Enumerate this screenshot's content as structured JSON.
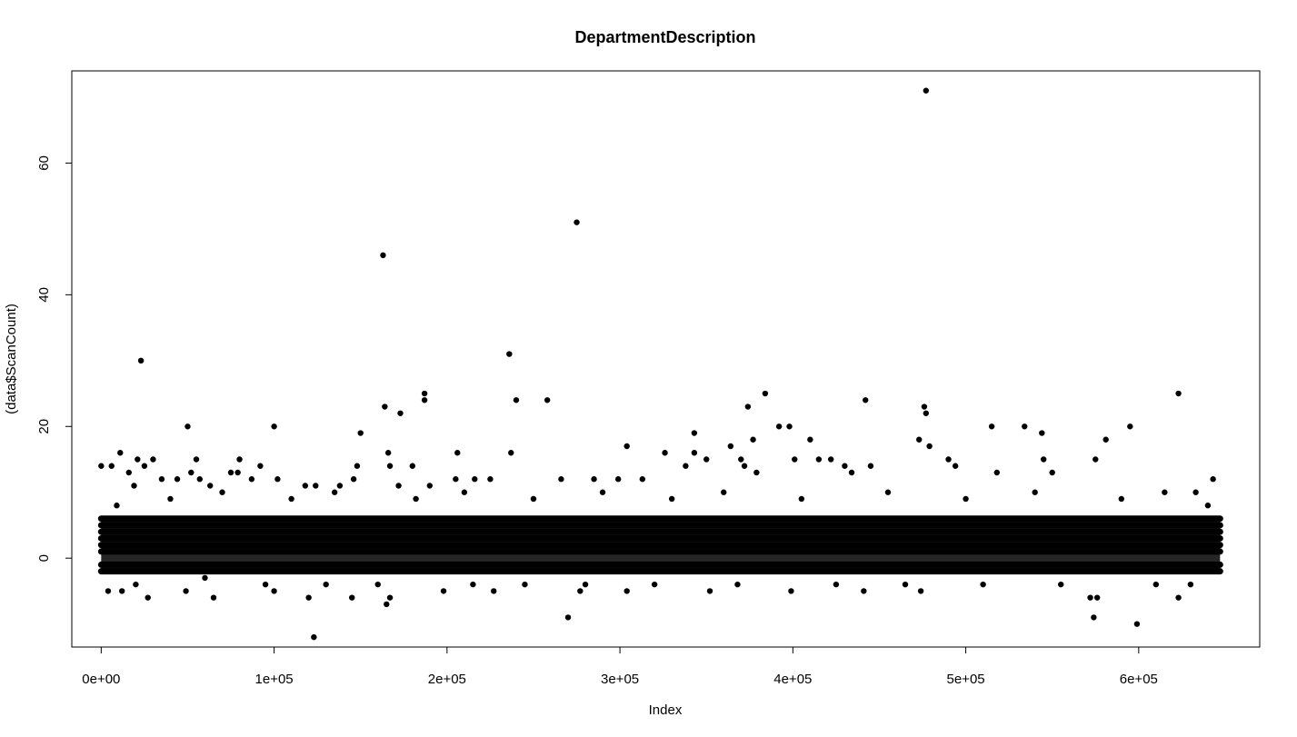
{
  "chart_data": {
    "type": "scatter",
    "title": "DepartmentDescription",
    "xlabel": "Index",
    "ylabel": "(data$ScanCount)",
    "xlim": [
      -17000,
      670000
    ],
    "ylim": [
      -13.5,
      74
    ],
    "x_ticks": [
      0,
      100000,
      200000,
      300000,
      400000,
      500000,
      600000
    ],
    "x_tick_labels": [
      "0e+00",
      "1e+05",
      "2e+05",
      "3e+05",
      "4e+05",
      "5e+05",
      "6e+05"
    ],
    "y_ticks": [
      0,
      20,
      40,
      60
    ],
    "y_tick_labels": [
      "0",
      "20",
      "40",
      "60"
    ],
    "grid": false,
    "legend": "none",
    "marker_color": "#000000",
    "dense_band": {
      "x_range": [
        0,
        647054
      ],
      "y_values": [
        -2,
        -1,
        1,
        2,
        3,
        4,
        5,
        6
      ]
    },
    "points": [
      {
        "x": 0,
        "y": 14
      },
      {
        "x": 6000,
        "y": 14
      },
      {
        "x": 11000,
        "y": 16
      },
      {
        "x": 16000,
        "y": 13
      },
      {
        "x": 23000,
        "y": 30
      },
      {
        "x": 21000,
        "y": 15
      },
      {
        "x": 25000,
        "y": 14
      },
      {
        "x": 30000,
        "y": 15
      },
      {
        "x": 19000,
        "y": 11
      },
      {
        "x": 35000,
        "y": 12
      },
      {
        "x": 44000,
        "y": 12
      },
      {
        "x": 50000,
        "y": 20
      },
      {
        "x": 52000,
        "y": 13
      },
      {
        "x": 55000,
        "y": 15
      },
      {
        "x": 57000,
        "y": 12
      },
      {
        "x": 63000,
        "y": 11
      },
      {
        "x": 75000,
        "y": 13
      },
      {
        "x": 79000,
        "y": 13
      },
      {
        "x": 80000,
        "y": 15
      },
      {
        "x": 87000,
        "y": 12
      },
      {
        "x": 92000,
        "y": 14
      },
      {
        "x": 100000,
        "y": 20
      },
      {
        "x": 102000,
        "y": 12
      },
      {
        "x": 118000,
        "y": 11
      },
      {
        "x": 124000,
        "y": 11
      },
      {
        "x": 138000,
        "y": 11
      },
      {
        "x": 146000,
        "y": 12
      },
      {
        "x": 150000,
        "y": 19
      },
      {
        "x": 148000,
        "y": 14
      },
      {
        "x": 163000,
        "y": 46
      },
      {
        "x": 164000,
        "y": 23
      },
      {
        "x": 166000,
        "y": 16
      },
      {
        "x": 167000,
        "y": 14
      },
      {
        "x": 172000,
        "y": 11
      },
      {
        "x": 173000,
        "y": 22
      },
      {
        "x": 180000,
        "y": 14
      },
      {
        "x": 187000,
        "y": 25
      },
      {
        "x": 187000,
        "y": 24
      },
      {
        "x": 190000,
        "y": 11
      },
      {
        "x": 205000,
        "y": 12
      },
      {
        "x": 206000,
        "y": 16
      },
      {
        "x": 216000,
        "y": 12
      },
      {
        "x": 225000,
        "y": 12
      },
      {
        "x": 236000,
        "y": 31
      },
      {
        "x": 237000,
        "y": 16
      },
      {
        "x": 240000,
        "y": 24
      },
      {
        "x": 258000,
        "y": 24
      },
      {
        "x": 266000,
        "y": 12
      },
      {
        "x": 275000,
        "y": 51
      },
      {
        "x": 285000,
        "y": 12
      },
      {
        "x": 299000,
        "y": 12
      },
      {
        "x": 304000,
        "y": 17
      },
      {
        "x": 313000,
        "y": 12
      },
      {
        "x": 326000,
        "y": 16
      },
      {
        "x": 338000,
        "y": 14
      },
      {
        "x": 343000,
        "y": 19
      },
      {
        "x": 343000,
        "y": 16
      },
      {
        "x": 350000,
        "y": 15
      },
      {
        "x": 364000,
        "y": 17
      },
      {
        "x": 370000,
        "y": 15
      },
      {
        "x": 372000,
        "y": 14
      },
      {
        "x": 374000,
        "y": 23
      },
      {
        "x": 377000,
        "y": 18
      },
      {
        "x": 379000,
        "y": 13
      },
      {
        "x": 384000,
        "y": 25
      },
      {
        "x": 392000,
        "y": 20
      },
      {
        "x": 398000,
        "y": 20
      },
      {
        "x": 401000,
        "y": 15
      },
      {
        "x": 410000,
        "y": 18
      },
      {
        "x": 415000,
        "y": 15
      },
      {
        "x": 422000,
        "y": 15
      },
      {
        "x": 430000,
        "y": 14
      },
      {
        "x": 434000,
        "y": 13
      },
      {
        "x": 442000,
        "y": 24
      },
      {
        "x": 445000,
        "y": 14
      },
      {
        "x": 473000,
        "y": 18
      },
      {
        "x": 477000,
        "y": 71
      },
      {
        "x": 476000,
        "y": 23
      },
      {
        "x": 477000,
        "y": 22
      },
      {
        "x": 479000,
        "y": 17
      },
      {
        "x": 490000,
        "y": 15
      },
      {
        "x": 494000,
        "y": 14
      },
      {
        "x": 515000,
        "y": 20
      },
      {
        "x": 518000,
        "y": 13
      },
      {
        "x": 534000,
        "y": 20
      },
      {
        "x": 544000,
        "y": 19
      },
      {
        "x": 545000,
        "y": 15
      },
      {
        "x": 550000,
        "y": 13
      },
      {
        "x": 575000,
        "y": 15
      },
      {
        "x": 581000,
        "y": 18
      },
      {
        "x": 595000,
        "y": 20
      },
      {
        "x": 623000,
        "y": 25
      },
      {
        "x": 633000,
        "y": 10
      },
      {
        "x": 643000,
        "y": 12
      },
      {
        "x": 4000,
        "y": -5
      },
      {
        "x": 12000,
        "y": -5
      },
      {
        "x": 27000,
        "y": -6
      },
      {
        "x": 49000,
        "y": -5
      },
      {
        "x": 65000,
        "y": -6
      },
      {
        "x": 100000,
        "y": -5
      },
      {
        "x": 120000,
        "y": -6
      },
      {
        "x": 123000,
        "y": -12
      },
      {
        "x": 145000,
        "y": -6
      },
      {
        "x": 165000,
        "y": -7
      },
      {
        "x": 167000,
        "y": -6
      },
      {
        "x": 198000,
        "y": -5
      },
      {
        "x": 227000,
        "y": -5
      },
      {
        "x": 270000,
        "y": -9
      },
      {
        "x": 277000,
        "y": -5
      },
      {
        "x": 304000,
        "y": -5
      },
      {
        "x": 352000,
        "y": -5
      },
      {
        "x": 399000,
        "y": -5
      },
      {
        "x": 441000,
        "y": -5
      },
      {
        "x": 474000,
        "y": -5
      },
      {
        "x": 572000,
        "y": -6
      },
      {
        "x": 574000,
        "y": -9
      },
      {
        "x": 576000,
        "y": -6
      },
      {
        "x": 599000,
        "y": -10
      },
      {
        "x": 623000,
        "y": -6
      },
      {
        "x": 9000,
        "y": 8
      },
      {
        "x": 40000,
        "y": 9
      },
      {
        "x": 70000,
        "y": 10
      },
      {
        "x": 110000,
        "y": 9
      },
      {
        "x": 135000,
        "y": 10
      },
      {
        "x": 182000,
        "y": 9
      },
      {
        "x": 210000,
        "y": 10
      },
      {
        "x": 250000,
        "y": 9
      },
      {
        "x": 290000,
        "y": 10
      },
      {
        "x": 330000,
        "y": 9
      },
      {
        "x": 360000,
        "y": 10
      },
      {
        "x": 405000,
        "y": 9
      },
      {
        "x": 455000,
        "y": 10
      },
      {
        "x": 500000,
        "y": 9
      },
      {
        "x": 540000,
        "y": 10
      },
      {
        "x": 590000,
        "y": 9
      },
      {
        "x": 615000,
        "y": 10
      },
      {
        "x": 640000,
        "y": 8
      },
      {
        "x": 20000,
        "y": -4
      },
      {
        "x": 60000,
        "y": -3
      },
      {
        "x": 95000,
        "y": -4
      },
      {
        "x": 130000,
        "y": -4
      },
      {
        "x": 160000,
        "y": -4
      },
      {
        "x": 215000,
        "y": -4
      },
      {
        "x": 245000,
        "y": -4
      },
      {
        "x": 280000,
        "y": -4
      },
      {
        "x": 320000,
        "y": -4
      },
      {
        "x": 368000,
        "y": -4
      },
      {
        "x": 425000,
        "y": -4
      },
      {
        "x": 465000,
        "y": -4
      },
      {
        "x": 510000,
        "y": -4
      },
      {
        "x": 555000,
        "y": -4
      },
      {
        "x": 610000,
        "y": -4
      },
      {
        "x": 630000,
        "y": -4
      }
    ]
  }
}
